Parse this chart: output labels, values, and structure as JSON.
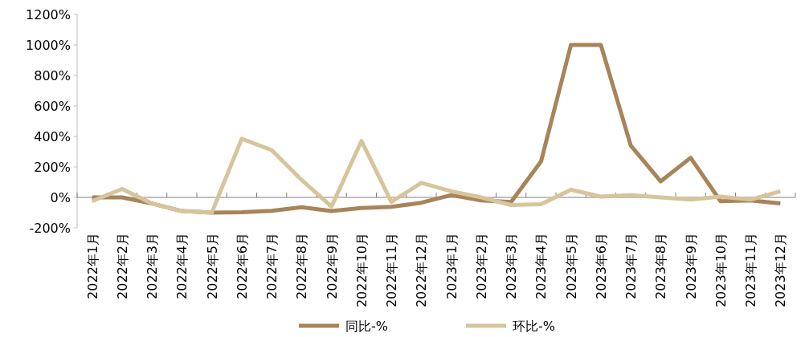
{
  "chart_data": {
    "type": "line",
    "categories": [
      "2022年1月",
      "2022年2月",
      "2022年3月",
      "2022年4月",
      "2022年5月",
      "2022年6月",
      "2022年7月",
      "2022年8月",
      "2022年9月",
      "2022年10月",
      "2022年11月",
      "2022年12月",
      "2023年1月",
      "2023年2月",
      "2023年3月",
      "2023年4月",
      "2023年5月",
      "2023年6月",
      "2023年7月",
      "2023年8月",
      "2023年9月",
      "2023年10月",
      "2023年11月",
      "2023年12月"
    ],
    "series": [
      {
        "name": "同比-%",
        "color": "#a88459",
        "values": [
          0,
          0,
          -40,
          -90,
          -100,
          -98,
          -88,
          -65,
          -90,
          -70,
          -62,
          -35,
          15,
          -20,
          -30,
          235,
          1000,
          1000,
          340,
          105,
          260,
          -25,
          -20,
          -40
        ]
      },
      {
        "name": "环比-%",
        "color": "#d6c59c",
        "values": [
          -25,
          55,
          -40,
          -90,
          -100,
          385,
          310,
          115,
          -60,
          370,
          -30,
          95,
          40,
          0,
          -50,
          -45,
          50,
          5,
          15,
          0,
          -15,
          5,
          -15,
          40
        ]
      }
    ],
    "ylim": [
      -200,
      1200
    ],
    "yticks": [
      {
        "value": -200,
        "label": "-200%"
      },
      {
        "value": 0,
        "label": "0%"
      },
      {
        "value": 200,
        "label": "200%"
      },
      {
        "value": 400,
        "label": "400%"
      },
      {
        "value": 600,
        "label": "600%"
      },
      {
        "value": 800,
        "label": "800%"
      },
      {
        "value": 1000,
        "label": "1000%"
      },
      {
        "value": 1200,
        "label": "1200%"
      }
    ],
    "legend": "bottom",
    "marker": "none",
    "line_style": "solid"
  }
}
